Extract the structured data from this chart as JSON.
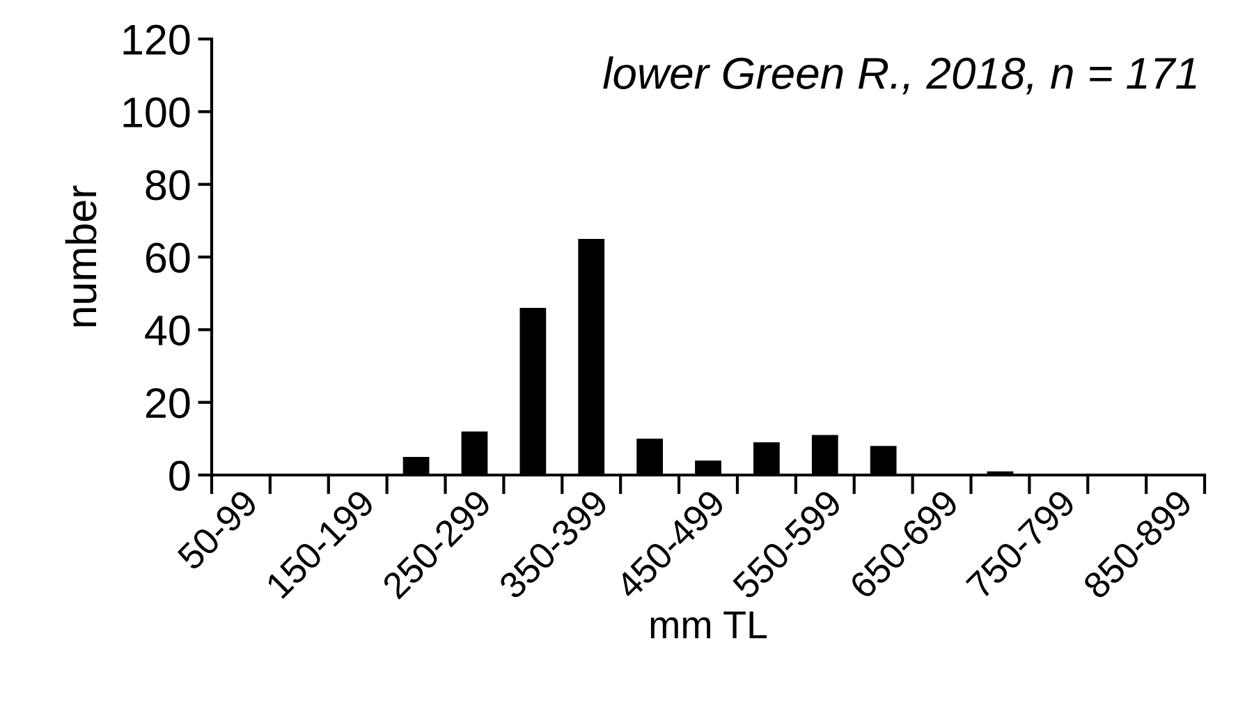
{
  "chart_data": {
    "type": "bar",
    "title": "lower Green R., 2018, n = 171",
    "xlabel": "mm TL",
    "ylabel": "number",
    "categories": [
      "50-99",
      null,
      "150-199",
      null,
      "250-299",
      null,
      "350-399",
      null,
      "450-499",
      null,
      "550-599",
      null,
      "650-699",
      null,
      "750-799",
      null,
      "850-899"
    ],
    "values": [
      0,
      0,
      0,
      5,
      12,
      46,
      65,
      10,
      4,
      9,
      11,
      8,
      0,
      1,
      0,
      0,
      0
    ],
    "color": "#000000",
    "ylim": [
      0,
      120
    ],
    "yticks": [
      0,
      20,
      40,
      60,
      80,
      100,
      120
    ],
    "grid": false
  }
}
